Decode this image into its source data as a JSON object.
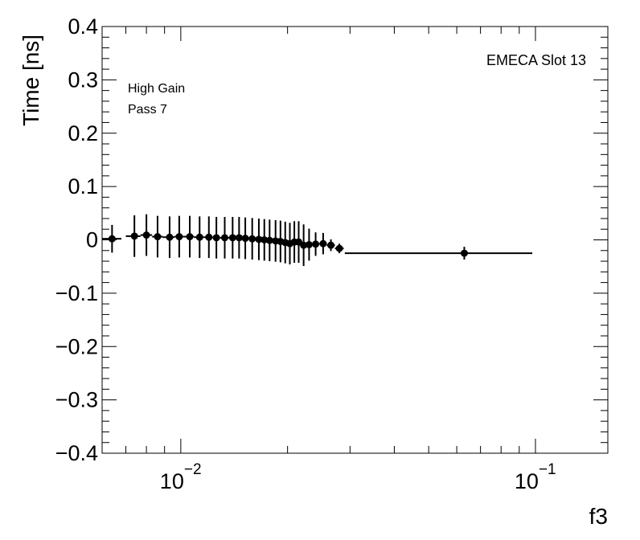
{
  "chart_data": {
    "type": "scatter",
    "xlabel": "f3",
    "ylabel": "Time [ns]",
    "xscale": "log",
    "xlim": [
      0.006,
      0.16
    ],
    "ylim": [
      -0.4,
      0.4
    ],
    "grid": false,
    "y_ticks": [
      {
        "value": -0.4,
        "label": "−0.4"
      },
      {
        "value": -0.3,
        "label": "−0.3"
      },
      {
        "value": -0.2,
        "label": "−0.2"
      },
      {
        "value": -0.1,
        "label": "−0.1"
      },
      {
        "value": 0,
        "label": "0"
      },
      {
        "value": 0.1,
        "label": "0.1"
      },
      {
        "value": 0.2,
        "label": "0.2"
      },
      {
        "value": 0.3,
        "label": "0.3"
      },
      {
        "value": 0.4,
        "label": "0.4"
      }
    ],
    "x_ticks": [
      {
        "value": 0.01,
        "base": "10",
        "exp": "−2"
      },
      {
        "value": 0.1,
        "base": "10",
        "exp": "−1"
      }
    ],
    "annotations": {
      "top_right": "EMECA Slot 13",
      "line1": "High Gain",
      "line2": "Pass 7"
    },
    "series": [
      {
        "points": [
          {
            "x": 0.0064,
            "y": 0.002,
            "xlo": 0.006,
            "xhi": 0.0068,
            "err": 0.026
          },
          {
            "x": 0.0074,
            "y": 0.007,
            "xlo": 0.007,
            "xhi": 0.0077,
            "err": 0.039
          },
          {
            "x": 0.008,
            "y": 0.009,
            "xlo": 0.0077,
            "xhi": 0.0083,
            "err": 0.039
          },
          {
            "x": 0.0086,
            "y": 0.006,
            "xlo": 0.0083,
            "xhi": 0.0089,
            "err": 0.039
          },
          {
            "x": 0.0093,
            "y": 0.005,
            "xlo": 0.0089,
            "xhi": 0.0096,
            "err": 0.039
          },
          {
            "x": 0.0099,
            "y": 0.006,
            "xlo": 0.0096,
            "xhi": 0.0102,
            "err": 0.039
          },
          {
            "x": 0.0106,
            "y": 0.006,
            "xlo": 0.0102,
            "xhi": 0.0109,
            "err": 0.039
          },
          {
            "x": 0.0113,
            "y": 0.005,
            "xlo": 0.0109,
            "xhi": 0.0116,
            "err": 0.039
          },
          {
            "x": 0.012,
            "y": 0.005,
            "xlo": 0.0116,
            "xhi": 0.0123,
            "err": 0.039
          },
          {
            "x": 0.0126,
            "y": 0.004,
            "xlo": 0.0123,
            "xhi": 0.0129,
            "err": 0.039
          },
          {
            "x": 0.0133,
            "y": 0.004,
            "xlo": 0.0129,
            "xhi": 0.0136,
            "err": 0.039
          },
          {
            "x": 0.014,
            "y": 0.004,
            "xlo": 0.0136,
            "xhi": 0.0143,
            "err": 0.039
          },
          {
            "x": 0.0146,
            "y": 0.004,
            "xlo": 0.0143,
            "xhi": 0.0149,
            "err": 0.039
          },
          {
            "x": 0.0152,
            "y": 0.003,
            "xlo": 0.0149,
            "xhi": 0.0155,
            "err": 0.039
          },
          {
            "x": 0.0159,
            "y": 0.002,
            "xlo": 0.0155,
            "xhi": 0.0162,
            "err": 0.039
          },
          {
            "x": 0.0166,
            "y": 0.001,
            "xlo": 0.0162,
            "xhi": 0.0169,
            "err": 0.039
          },
          {
            "x": 0.0172,
            "y": 0.0,
            "xlo": 0.0169,
            "xhi": 0.0175,
            "err": 0.039
          },
          {
            "x": 0.0178,
            "y": -0.001,
            "xlo": 0.0175,
            "xhi": 0.0181,
            "err": 0.039
          },
          {
            "x": 0.0185,
            "y": -0.002,
            "xlo": 0.0181,
            "xhi": 0.0188,
            "err": 0.039
          },
          {
            "x": 0.0191,
            "y": -0.003,
            "xlo": 0.0188,
            "xhi": 0.0194,
            "err": 0.039
          },
          {
            "x": 0.0197,
            "y": -0.005,
            "xlo": 0.0194,
            "xhi": 0.02,
            "err": 0.039
          },
          {
            "x": 0.0203,
            "y": -0.007,
            "xlo": 0.02,
            "xhi": 0.0206,
            "err": 0.039
          },
          {
            "x": 0.0209,
            "y": -0.004,
            "xlo": 0.0206,
            "xhi": 0.0212,
            "err": 0.039
          },
          {
            "x": 0.0215,
            "y": -0.004,
            "xlo": 0.0212,
            "xhi": 0.0218,
            "err": 0.039
          },
          {
            "x": 0.0222,
            "y": -0.01,
            "xlo": 0.0218,
            "xhi": 0.0226,
            "err": 0.039
          },
          {
            "x": 0.023,
            "y": -0.009,
            "xlo": 0.0226,
            "xhi": 0.0234,
            "err": 0.03
          },
          {
            "x": 0.024,
            "y": -0.008,
            "xlo": 0.0234,
            "xhi": 0.0246,
            "err": 0.022
          },
          {
            "x": 0.0252,
            "y": -0.007,
            "xlo": 0.0246,
            "xhi": 0.0258,
            "err": 0.02
          },
          {
            "x": 0.0265,
            "y": -0.01,
            "xlo": 0.0258,
            "xhi": 0.0272,
            "err": 0.011
          },
          {
            "x": 0.028,
            "y": -0.016,
            "xlo": 0.0272,
            "xhi": 0.0288,
            "err": 0.009
          },
          {
            "x": 0.063,
            "y": -0.025,
            "xlo": 0.029,
            "xhi": 0.098,
            "err": 0.012
          }
        ]
      }
    ]
  }
}
